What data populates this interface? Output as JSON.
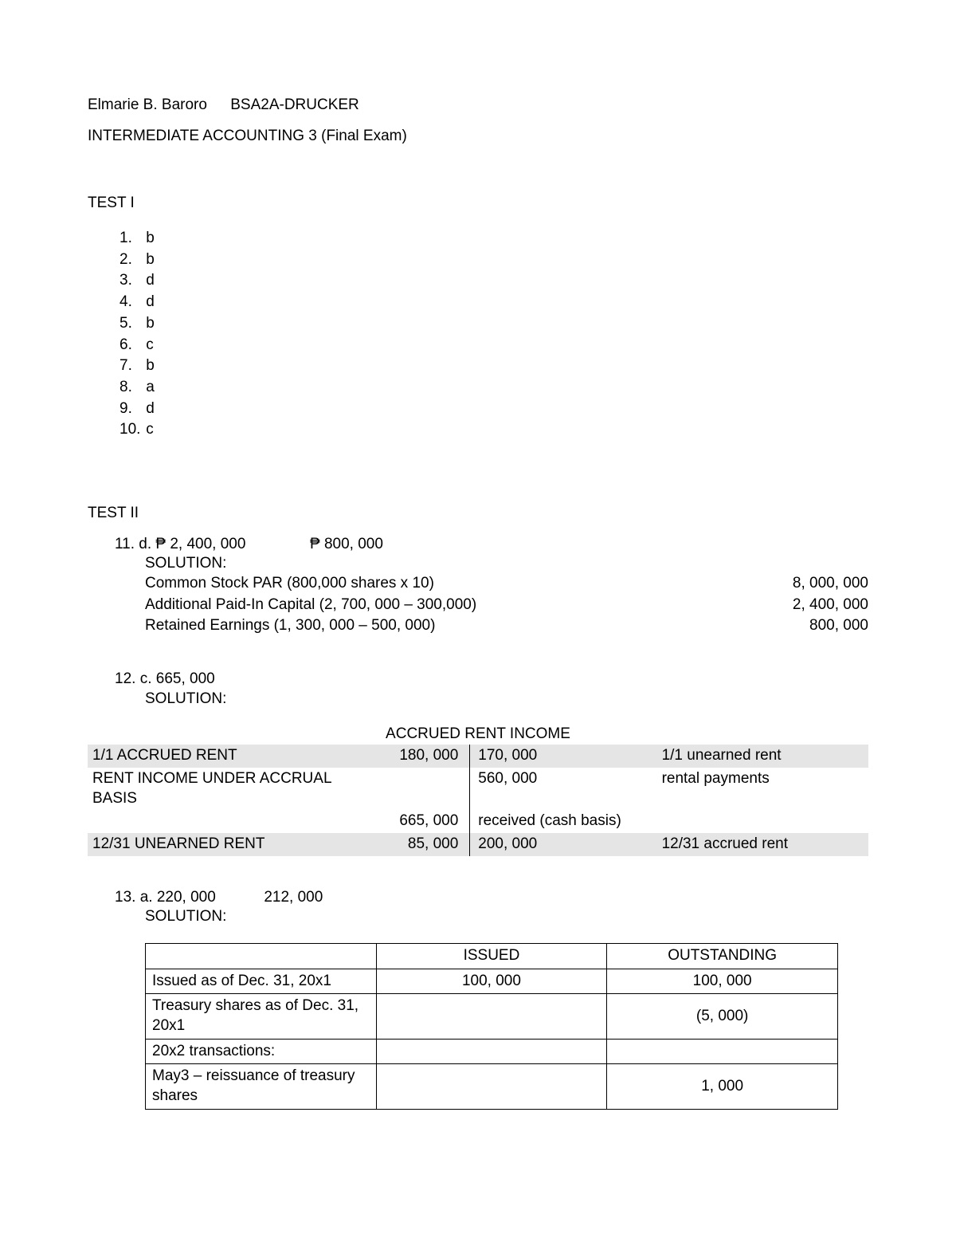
{
  "header": {
    "student": "Elmarie B. Baroro",
    "section": "BSA2A-DRUCKER",
    "course": "INTERMEDIATE ACCOUNTING 3 (Final Exam)"
  },
  "test1": {
    "title": "TEST I",
    "answers": [
      {
        "n": "1.",
        "a": "b"
      },
      {
        "n": "2.",
        "a": "b"
      },
      {
        "n": "3.",
        "a": "d"
      },
      {
        "n": "4.",
        "a": "d"
      },
      {
        "n": "5.",
        "a": "b"
      },
      {
        "n": "6.",
        "a": "c"
      },
      {
        "n": "7.",
        "a": "b"
      },
      {
        "n": "8.",
        "a": "a"
      },
      {
        "n": "9.",
        "a": "d"
      },
      {
        "n": "10.",
        "a": "c"
      }
    ]
  },
  "test2": {
    "title": "TEST II",
    "q11": {
      "head": "11. d. ₱ 2, 400, 000",
      "head2": "₱ 800, 000",
      "solution_label": "SOLUTION:",
      "rows": [
        {
          "l": "Common Stock PAR (800,000 shares x 10)",
          "r": "8, 000, 000"
        },
        {
          "l": "Additional Paid-In Capital (2, 700, 000 – 300,000)",
          "r": "2, 400, 000"
        },
        {
          "l": "Retained Earnings (1, 300, 000 – 500, 000)",
          "r": "800, 000"
        }
      ]
    },
    "q12": {
      "head": "12. c. 665, 000",
      "solution_label": "SOLUTION:",
      "accrued_title": "ACCRUED RENT INCOME",
      "rows": [
        {
          "shade": true,
          "l1": "1/1 ACCRUED RENT",
          "l2": "180, 000",
          "r1": "170, 000",
          "r2": "1/1 unearned rent"
        },
        {
          "shade": false,
          "l1": "RENT INCOME UNDER ACCRUAL BASIS",
          "l2": "",
          "r1": "560, 000",
          "r2": "rental payments"
        },
        {
          "shade": false,
          "l1": "",
          "l2": "665, 000",
          "r1": "received (cash basis)",
          "r2": ""
        },
        {
          "shade": true,
          "l1": "12/31 UNEARNED RENT",
          "l2": "85, 000",
          "r1": "200, 000",
          "r2": "12/31 accrued rent"
        }
      ]
    },
    "q13": {
      "head": "13. a. 220, 000",
      "head2": "212, 000",
      "solution_label": "SOLUTION:",
      "columns": [
        "",
        "ISSUED",
        "OUTSTANDING"
      ],
      "rows": [
        {
          "d": "Issued as of Dec. 31, 20x1",
          "i": "100, 000",
          "o": "100, 000"
        },
        {
          "d": "Treasury shares as of Dec. 31, 20x1",
          "i": "",
          "o": "(5, 000)"
        },
        {
          "d": "20x2 transactions:",
          "i": "",
          "o": ""
        },
        {
          "d": "May3 – reissuance of treasury shares",
          "i": "",
          "o": "1, 000"
        }
      ]
    }
  }
}
